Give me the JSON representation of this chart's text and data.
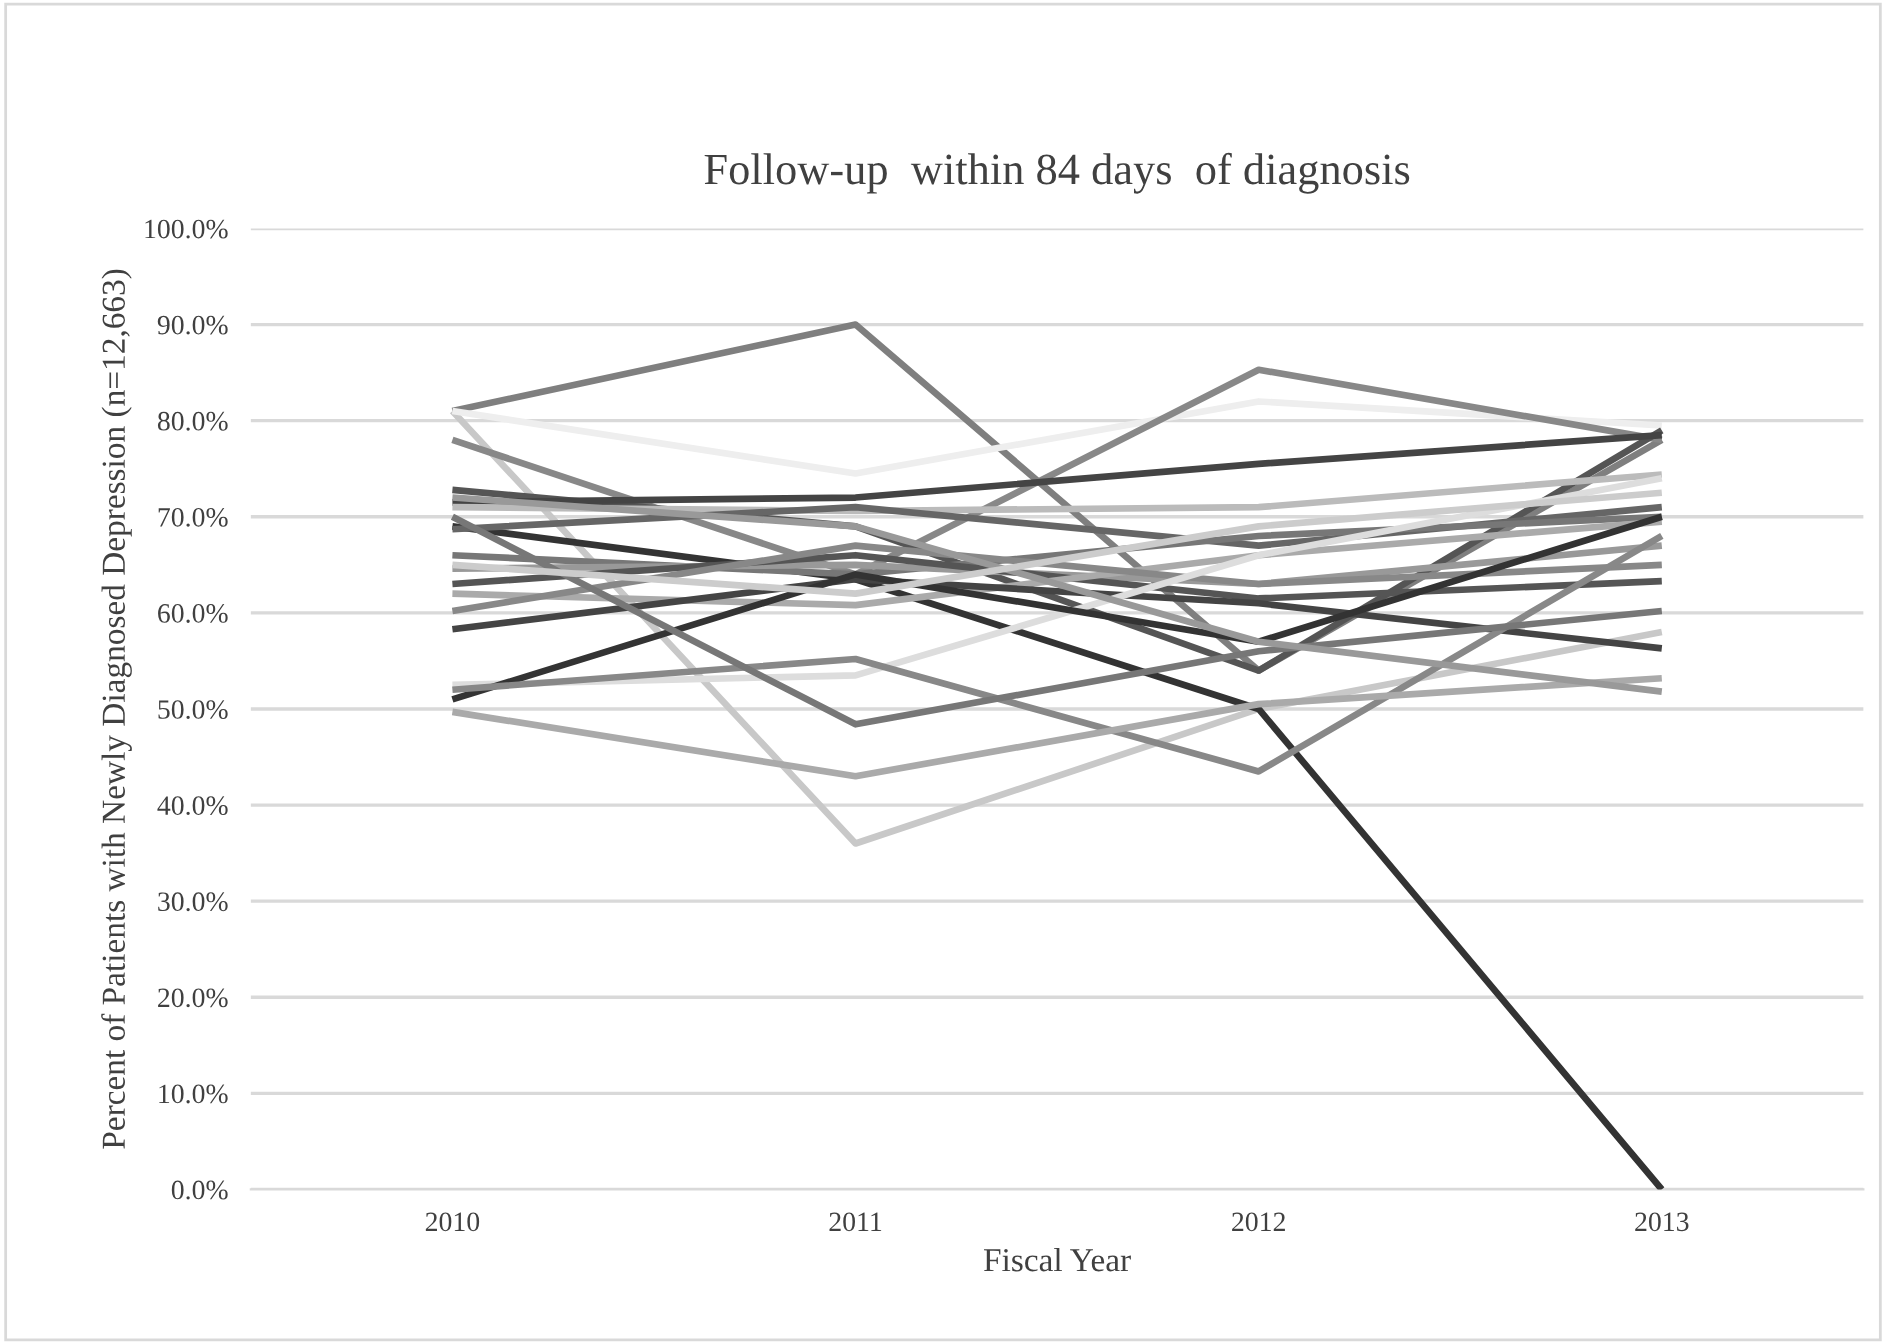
{
  "chart_data": {
    "type": "line",
    "title": "Follow-up  within 84 days  of diagnosis",
    "xlabel": "Fiscal Year",
    "ylabel": "Percent of Patients with Newly Diagnosed Depression (n=12,663)",
    "categories": [
      "2010",
      "2011",
      "2012",
      "2013"
    ],
    "series": [
      {
        "color": "#7f7f7f",
        "values": [
          81,
          90,
          54,
          78
        ]
      },
      {
        "color": "#c8c8c8",
        "values": [
          81,
          36,
          50,
          58
        ]
      },
      {
        "color": "#eeeeee",
        "values": [
          81,
          74.5,
          82,
          79.5
        ]
      },
      {
        "color": "#888888",
        "values": [
          78,
          64,
          85.3,
          78
        ]
      },
      {
        "color": "#555555",
        "values": [
          72.8,
          69,
          54,
          79
        ]
      },
      {
        "color": "#444444",
        "values": [
          71.5,
          72,
          75.5,
          78.5
        ]
      },
      {
        "color": "#bbbbbb",
        "values": [
          71,
          70.6,
          71,
          74.4
        ]
      },
      {
        "color": "#333333",
        "values": [
          69,
          63.5,
          50,
          0
        ]
      },
      {
        "color": "#666666",
        "values": [
          68.7,
          71,
          67,
          71
        ]
      },
      {
        "color": "#777777",
        "values": [
          66,
          64,
          68,
          70
        ]
      },
      {
        "color": "#999999",
        "values": [
          64.6,
          65,
          63,
          67
        ]
      },
      {
        "color": "#555555",
        "values": [
          63,
          66,
          61.5,
          63.3
        ]
      },
      {
        "color": "#aaaaaa",
        "values": [
          62,
          60.8,
          66,
          69.5
        ]
      },
      {
        "color": "#888888",
        "values": [
          60.2,
          67,
          63,
          65
        ]
      },
      {
        "color": "#444444",
        "values": [
          58.3,
          63.5,
          61,
          56.3
        ]
      },
      {
        "color": "#dddddd",
        "values": [
          52.5,
          53.5,
          66,
          74
        ]
      },
      {
        "color": "#333333",
        "values": [
          51,
          64,
          57,
          70
        ]
      },
      {
        "color": "#888888",
        "values": [
          52,
          55.2,
          43.5,
          68
        ]
      },
      {
        "color": "#aaaaaa",
        "values": [
          49.7,
          43,
          50.5,
          53.2
        ]
      },
      {
        "color": "#777777",
        "values": [
          70,
          48.4,
          56,
          60.2
        ]
      },
      {
        "color": "#999999",
        "values": [
          72,
          69,
          57,
          51.8
        ]
      },
      {
        "color": "#cccccc",
        "values": [
          65,
          62,
          69,
          72.5
        ]
      }
    ],
    "ylim": [
      0,
      100
    ],
    "yticks": [
      {
        "value": 0,
        "label": "0.0%"
      },
      {
        "value": 10,
        "label": "10.0%"
      },
      {
        "value": 20,
        "label": "20.0%"
      },
      {
        "value": 30,
        "label": "30.0%"
      },
      {
        "value": 40,
        "label": "40.0%"
      },
      {
        "value": 50,
        "label": "50.0%"
      },
      {
        "value": 60,
        "label": "60.0%"
      },
      {
        "value": 70,
        "label": "70.0%"
      },
      {
        "value": 80,
        "label": "80.0%"
      },
      {
        "value": 90,
        "label": "90.0%"
      },
      {
        "value": 100,
        "label": "100.0%"
      }
    ],
    "grid": "y",
    "legend": false,
    "marker": "none",
    "line_style": "solid"
  }
}
